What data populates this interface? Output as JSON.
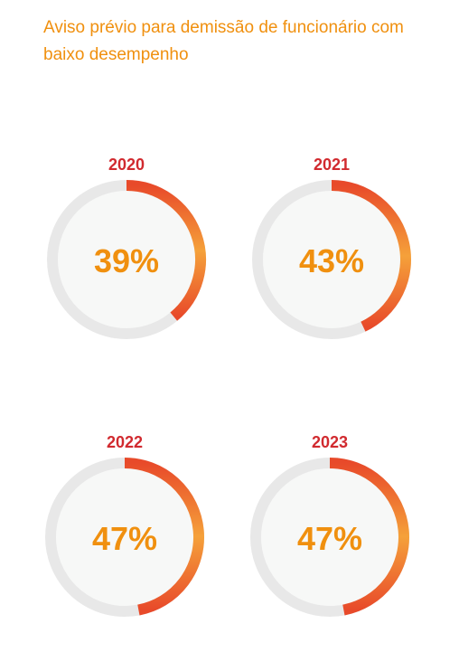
{
  "title": "Aviso prévio para demissão de funcionário com baixo desempenho",
  "colors": {
    "title": "#f0900f",
    "year": "#d12a2f",
    "percent": "#f0900f",
    "track": "#e8e8e8",
    "inner": "#f7f8f7",
    "arc_start": "#e84a2a",
    "arc_end": "#f5a13a"
  },
  "chart_data": {
    "type": "pie",
    "subtype": "donut-progress",
    "title": "Aviso prévio para demissão de funcionário com baixo desempenho",
    "categories": [
      "2020",
      "2021",
      "2022",
      "2023"
    ],
    "values": [
      39,
      43,
      47,
      47
    ],
    "labels": [
      "39%",
      "43%",
      "47%",
      "47%"
    ],
    "unit": "%",
    "max": 100
  }
}
